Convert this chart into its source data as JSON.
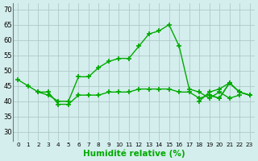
{
  "series": {
    "s1": [
      47,
      45,
      43,
      42,
      40,
      40,
      48,
      48,
      51,
      53,
      54,
      54,
      58,
      62,
      63,
      65,
      58,
      44,
      43,
      41,
      43,
      41,
      42,
      null
    ],
    "s2": [
      null,
      null,
      43,
      43,
      39,
      39,
      42,
      42,
      42,
      43,
      43,
      43,
      44,
      44,
      44,
      44,
      43,
      43,
      41,
      42,
      41,
      46,
      43,
      42
    ],
    "s3": [
      null,
      null,
      null,
      null,
      null,
      null,
      null,
      null,
      null,
      null,
      null,
      null,
      null,
      null,
      null,
      null,
      null,
      null,
      40,
      43,
      44,
      46,
      43,
      42
    ],
    "s4": [
      null,
      null,
      null,
      null,
      null,
      null,
      null,
      null,
      null,
      null,
      null,
      null,
      null,
      null,
      null,
      null,
      null,
      null,
      null,
      42,
      41,
      46,
      43,
      42
    ]
  },
  "title": "Humidité relative (%)",
  "bg_color": "#d4eeed",
  "grid_color": "#b0c8c8",
  "line_color": "#00aa00",
  "ylim": [
    27,
    72
  ],
  "yticks": [
    30,
    35,
    40,
    45,
    50,
    55,
    60,
    65,
    70
  ],
  "xlim": [
    -0.5,
    23.5
  ],
  "figsize": [
    3.2,
    2.0
  ],
  "dpi": 100
}
